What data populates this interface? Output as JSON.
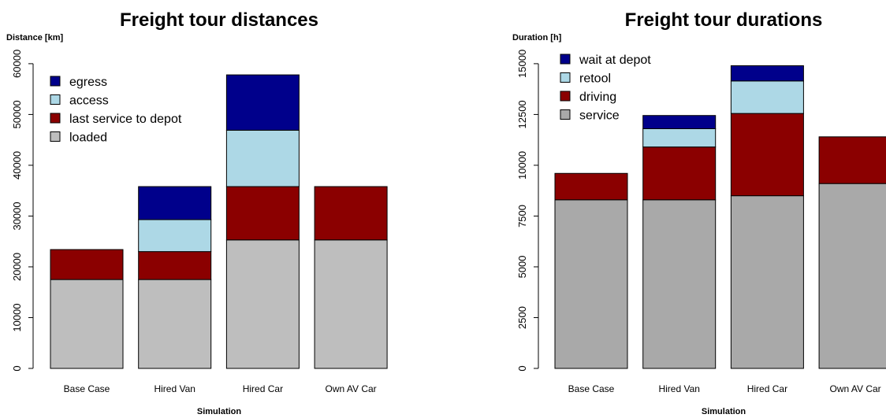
{
  "chart_data": [
    {
      "type": "bar",
      "stacked": true,
      "title": "Freight tour distances",
      "ylabel": "Distance [km]",
      "xlabel": "Simulation",
      "categories": [
        "Base Case",
        "Hired Van",
        "Hired Car",
        "Own AV Car"
      ],
      "yticks": [
        0,
        10000,
        20000,
        30000,
        40000,
        50000,
        60000
      ],
      "ylim": [
        0,
        62000
      ],
      "legend_position": "top-left",
      "series": [
        {
          "name": "loaded",
          "color": "#bebebe",
          "values": [
            17500,
            17500,
            25300,
            25300
          ]
        },
        {
          "name": "last service to depot",
          "color": "#8b0000",
          "values": [
            5900,
            5500,
            10500,
            10500
          ]
        },
        {
          "name": "access",
          "color": "#add8e6",
          "values": [
            0,
            6300,
            11100,
            0
          ]
        },
        {
          "name": "egress",
          "color": "#00008b",
          "values": [
            0,
            6500,
            10900,
            0
          ]
        }
      ]
    },
    {
      "type": "bar",
      "stacked": true,
      "title": "Freight tour durations",
      "ylabel": "Duration [h]",
      "xlabel": "Simulation",
      "categories": [
        "Base Case",
        "Hired Van",
        "Hired Car",
        "Own AV Car"
      ],
      "yticks": [
        0,
        2500,
        5000,
        7500,
        10000,
        12500,
        15000
      ],
      "yticklabels": [
        "0",
        "2500",
        "5000",
        "7500",
        "10000",
        "12500",
        "15000"
      ],
      "ylim": [
        0,
        15500
      ],
      "legend_position": "top-left",
      "series": [
        {
          "name": "service",
          "color": "#a9a9a9",
          "values": [
            8300,
            8300,
            8500,
            9100
          ]
        },
        {
          "name": "driving",
          "color": "#8b0000",
          "values": [
            1300,
            2600,
            4050,
            2300
          ]
        },
        {
          "name": "retool",
          "color": "#add8e6",
          "values": [
            0,
            900,
            1600,
            0
          ]
        },
        {
          "name": "wait at depot",
          "color": "#00008b",
          "values": [
            0,
            650,
            750,
            0
          ]
        }
      ]
    }
  ]
}
